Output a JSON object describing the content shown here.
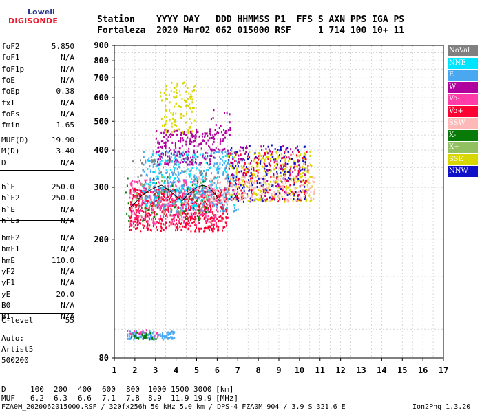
{
  "logo": {
    "top": "Lowell",
    "bottom": "DIGISONDE"
  },
  "header": {
    "line1": "Station    YYYY DAY   DDD HHMMSS P1  FFS S AXN PPS IGA PS",
    "line2": "Fortaleza  2020 Mar02 062 015000 RSF     1 714 100 10+ 11"
  },
  "parameters": {
    "group1": [
      {
        "name": "foF2",
        "value": "5.850"
      },
      {
        "name": "foF1",
        "value": "N/A"
      },
      {
        "name": "foF1p",
        "value": "N/A"
      },
      {
        "name": "foE",
        "value": "N/A"
      },
      {
        "name": "foEp",
        "value": "0.38"
      },
      {
        "name": "fxI",
        "value": "N/A"
      },
      {
        "name": "foEs",
        "value": "N/A"
      },
      {
        "name": "fmin",
        "value": "1.65"
      }
    ],
    "group2": [
      {
        "name": "MUF(D)",
        "value": "19.90"
      },
      {
        "name": "M(D)",
        "value": "3.40"
      },
      {
        "name": "D",
        "value": "N/A"
      }
    ],
    "group3": [
      {
        "name": "h`F",
        "value": "250.0"
      },
      {
        "name": "h`F2",
        "value": "250.0"
      },
      {
        "name": "h`E",
        "value": "N/A"
      },
      {
        "name": "h`Es",
        "value": "N/A"
      }
    ],
    "group4": [
      {
        "name": "hmF2",
        "value": "N/A"
      },
      {
        "name": "hmF1",
        "value": "N/A"
      },
      {
        "name": "hmE",
        "value": "110.0"
      },
      {
        "name": "yF2",
        "value": "N/A"
      },
      {
        "name": "yF1",
        "value": "N/A"
      },
      {
        "name": "yE",
        "value": "20.0"
      },
      {
        "name": "B0",
        "value": "N/A"
      },
      {
        "name": "B1",
        "value": "N/A"
      }
    ],
    "group5": [
      {
        "name": "C-level",
        "value": "55"
      }
    ]
  },
  "auto_scaler": {
    "line1": "Auto:",
    "line2": "Artist5",
    "line3": "500200"
  },
  "legend": [
    {
      "label": "NoVal",
      "color": "#808080"
    },
    {
      "label": "NNE",
      "color": "#00e5ff"
    },
    {
      "label": "E",
      "color": "#4aa8f0"
    },
    {
      "label": "W",
      "color": "#b0009e"
    },
    {
      "label": "Vo-",
      "color": "#ff3ca8"
    },
    {
      "label": "Vo+",
      "color": "#ff0033"
    },
    {
      "label": "SSW",
      "color": "#ffb8b8"
    },
    {
      "label": "X-",
      "color": "#087a08"
    },
    {
      "label": "X+",
      "color": "#90c060"
    },
    {
      "label": "SSE",
      "color": "#d8d800"
    },
    {
      "label": "NNW",
      "color": "#1010c8"
    }
  ],
  "chart_data": {
    "type": "scatter",
    "x_ticks": [
      "1",
      "2",
      "3",
      "4",
      "5",
      "6",
      "7",
      "8",
      "9",
      "10",
      "11",
      "12",
      "13",
      "14",
      "15",
      "16",
      "17"
    ],
    "y_ticks": [
      "80",
      "200",
      "300",
      "400",
      "500",
      "600",
      "700",
      "800",
      "900"
    ],
    "xlim": [
      1,
      17
    ],
    "ylim": [
      80,
      900
    ],
    "y_scale": "log",
    "grid": true,
    "legend_position": "right",
    "trace": {
      "x": [
        1.7,
        2.0,
        2.3,
        2.6,
        3.0,
        3.3,
        3.6,
        4.0,
        4.3,
        4.6,
        5.0,
        5.3,
        5.6,
        5.9,
        6.1
      ],
      "y": [
        255,
        265,
        280,
        290,
        300,
        305,
        295,
        280,
        270,
        285,
        300,
        305,
        300,
        285,
        270
      ]
    },
    "clusters": [
      {
        "color": "#ff0033",
        "xmin": 1.7,
        "xmax": 6.5,
        "ymin": 215,
        "ymax": 300,
        "n": 650
      },
      {
        "color": "#ff3ca8",
        "xmin": 1.7,
        "xmax": 6.0,
        "ymin": 225,
        "ymax": 320,
        "n": 260
      },
      {
        "color": "#4aa8f0",
        "xmin": 2.3,
        "xmax": 7.0,
        "ymin": 250,
        "ymax": 400,
        "n": 420
      },
      {
        "color": "#00e5ff",
        "xmin": 2.5,
        "xmax": 6.8,
        "ymin": 260,
        "ymax": 390,
        "n": 160
      },
      {
        "color": "#b0009e",
        "xmin": 3.0,
        "xmax": 5.9,
        "ymin": 360,
        "ymax": 470,
        "n": 220
      },
      {
        "color": "#b0009e",
        "xmin": 5.6,
        "xmax": 6.6,
        "ymin": 400,
        "ymax": 560,
        "n": 40
      },
      {
        "color": "#d8d800",
        "xmin": 3.2,
        "xmax": 4.9,
        "ymin": 460,
        "ymax": 680,
        "n": 110
      },
      {
        "color": "#d8d800",
        "xmin": 6.5,
        "xmax": 10.6,
        "ymin": 270,
        "ymax": 400,
        "n": 320
      },
      {
        "color": "#1010c8",
        "xmin": 6.5,
        "xmax": 10.4,
        "ymin": 270,
        "ymax": 420,
        "n": 170
      },
      {
        "color": "#ff0033",
        "xmin": 6.5,
        "xmax": 10.4,
        "ymin": 270,
        "ymax": 400,
        "n": 150
      },
      {
        "color": "#b0009e",
        "xmin": 6.5,
        "xmax": 10.4,
        "ymin": 280,
        "ymax": 420,
        "n": 90
      },
      {
        "color": "#ffb8b8",
        "xmin": 5.0,
        "xmax": 10.8,
        "ymin": 270,
        "ymax": 330,
        "n": 200
      },
      {
        "color": "#087a08",
        "xmin": 1.5,
        "xmax": 5.5,
        "ymin": 230,
        "ymax": 330,
        "n": 50
      },
      {
        "color": "#90c060",
        "xmin": 1.8,
        "xmax": 5.5,
        "ymin": 240,
        "ymax": 330,
        "n": 50
      },
      {
        "color": "#808080",
        "xmin": 1.8,
        "xmax": 6.5,
        "ymin": 240,
        "ymax": 380,
        "n": 70
      },
      {
        "color": "#4aa8f0",
        "xmin": 1.6,
        "xmax": 3.9,
        "ymin": 93,
        "ymax": 99,
        "n": 110
      },
      {
        "color": "#087a08",
        "xmin": 1.6,
        "xmax": 3.0,
        "ymin": 93,
        "ymax": 99,
        "n": 25
      },
      {
        "color": "#ff3ca8",
        "xmin": 1.6,
        "xmax": 3.2,
        "ymin": 95,
        "ymax": 100,
        "n": 15
      }
    ]
  },
  "dmuf_table": {
    "d_label": "D",
    "muf_label": "MUF",
    "d_values": [
      "100",
      "200",
      "400",
      "600",
      "800",
      "1000",
      "1500",
      "3000"
    ],
    "muf_values": [
      "6.2",
      "6.3",
      "6.6",
      "7.1",
      "7.8",
      "8.9",
      "11.9",
      "19.9"
    ],
    "d_unit": "[km]",
    "muf_unit": "[MHz]"
  },
  "footer": {
    "left": "FZA0M_2020062015000.RSF / 320fx256h 50 kHz 5.0 km / DPS-4 FZA0M 904 / 3.9 S 321.6 E",
    "right": "Ion2Png 1.3.20"
  }
}
